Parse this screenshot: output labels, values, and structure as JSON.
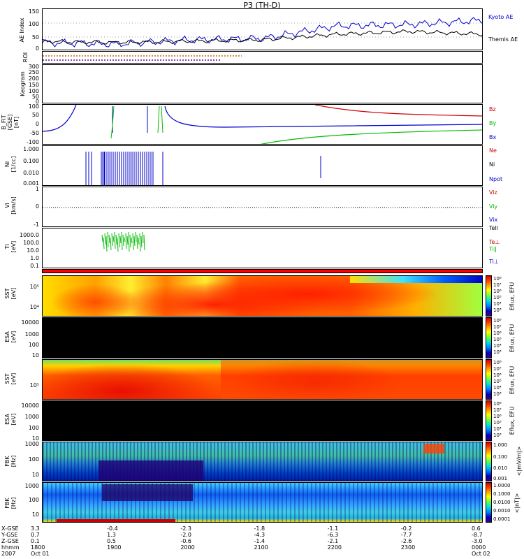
{
  "title": "P3 (TH-D)",
  "colors": {
    "kyoto": "#0000cc",
    "themis": "#000000",
    "red": "#cc0000",
    "green": "#00bb00",
    "blue": "#0000cc"
  },
  "panels": [
    {
      "id": "ae",
      "ylabel": "AE Index",
      "ticks": [
        "150",
        "100",
        "50",
        "0"
      ],
      "legend": [
        "Kyoto AE",
        "Themis AE"
      ]
    },
    {
      "id": "roi",
      "ylabel": "ROI",
      "ticks": []
    },
    {
      "id": "keogram",
      "ylabel": "Keogram",
      "ticks": [
        "300",
        "250",
        "200",
        "150",
        "100",
        "50",
        "0"
      ]
    },
    {
      "id": "bfit",
      "ylabel": "B_FIT\n[GSE]\n[nT]",
      "ticks": [
        "100",
        "50",
        "0",
        "-50",
        "-100"
      ],
      "legend": [
        "Bz",
        "By",
        "Bx"
      ]
    },
    {
      "id": "ni",
      "ylabel": "Ni\n[1/cc]",
      "ticks": [
        "1.000",
        "0.100",
        "0.010",
        "0.001"
      ],
      "legend": [
        "Ne",
        "Ni",
        "Npot"
      ]
    },
    {
      "id": "vi",
      "ylabel": "Vi\n[km/s]",
      "ticks": [
        "1",
        "0",
        "-1"
      ],
      "legend": [
        "Viz",
        "Viy",
        "Vix"
      ]
    },
    {
      "id": "ti",
      "ylabel": "Ti\n[eV]",
      "ticks": [
        "1000.0",
        "100.0",
        "10.0",
        "1.0",
        "0.1"
      ],
      "legend": [
        "Tell",
        "Te⊥",
        "Ti∥",
        "Ti⊥"
      ]
    },
    {
      "id": "sst_i",
      "ylabel": "SST\n[eV]",
      "ticks": [
        "10⁵",
        "10⁴"
      ]
    },
    {
      "id": "esa_i",
      "ylabel": "ESA\n[eV]",
      "ticks": [
        "10000",
        "1000",
        "100",
        "10"
      ]
    },
    {
      "id": "sst_e",
      "ylabel": "SST\n[eV]",
      "ticks": [
        "10⁵"
      ]
    },
    {
      "id": "esa_e",
      "ylabel": "ESA\n[eV]",
      "ticks": [
        "10000",
        "1000",
        "100",
        "10"
      ]
    },
    {
      "id": "fbk_e",
      "ylabel": "FBK\n[Hz]",
      "ticks": [
        "1000",
        "100",
        "10"
      ]
    },
    {
      "id": "fbk_b",
      "ylabel": "FBK\n[Hz]",
      "ticks": [
        "1000",
        "100",
        "10"
      ]
    }
  ],
  "colorbars": [
    {
      "label": "Eflux, EFU",
      "ticks": [
        "10⁸",
        "10⁷",
        "10⁶",
        "10⁵",
        "10⁴",
        "10³"
      ]
    },
    {
      "label": "Eflux, EFU",
      "ticks": [
        "10⁸",
        "10⁷",
        "10⁶",
        "10⁵",
        "10⁴",
        "10³"
      ]
    },
    {
      "label": "Eflux, EFU",
      "ticks": [
        "10⁸",
        "10⁷",
        "10⁶",
        "10⁵",
        "10⁴",
        "10³"
      ]
    },
    {
      "label": "Eflux, EFU",
      "ticks": [
        "10⁸",
        "10⁷",
        "10⁶",
        "10⁵",
        "10⁴",
        "10³"
      ]
    },
    {
      "label": "<|mV/m|>",
      "ticks": [
        "1.000",
        "0.100",
        "0.010",
        "0.001"
      ]
    },
    {
      "label": "<|nT|>",
      "ticks": [
        "1.0000",
        "0.1000",
        "0.0100",
        "0.0010",
        "0.0001"
      ]
    }
  ],
  "footer": {
    "row_labels": [
      "X-GSE",
      "Y-GSE",
      "Z-GSE",
      "hhmm",
      "2007"
    ],
    "columns": [
      [
        "3.3",
        "0.7",
        "0.1",
        "1800",
        "Oct 01"
      ],
      [
        "-0.4",
        "1.3",
        "0.5",
        "1900",
        ""
      ],
      [
        "-2.3",
        "-2.0",
        "-0.6",
        "2000",
        ""
      ],
      [
        "-1.8",
        "-4.3",
        "-1.4",
        "2100",
        ""
      ],
      [
        "-1.1",
        "-6.3",
        "-2.1",
        "2200",
        ""
      ],
      [
        "-0.2",
        "-7.7",
        "-2.6",
        "2300",
        ""
      ],
      [
        "0.6",
        "-8.7",
        "-3.0",
        "0000",
        "Oct 02"
      ]
    ]
  },
  "chart_data": {
    "type": "line",
    "x": [
      "1800",
      "1900",
      "2000",
      "2100",
      "2200",
      "2300",
      "0000"
    ],
    "series": [
      {
        "name": "Kyoto AE",
        "values": [
          30,
          25,
          40,
          45,
          90,
          95,
          110
        ]
      },
      {
        "name": "Themis AE",
        "values": [
          35,
          30,
          35,
          40,
          60,
          70,
          60
        ]
      }
    ],
    "ylabel": "AE Index",
    "ylim": [
      0,
      150
    ]
  }
}
